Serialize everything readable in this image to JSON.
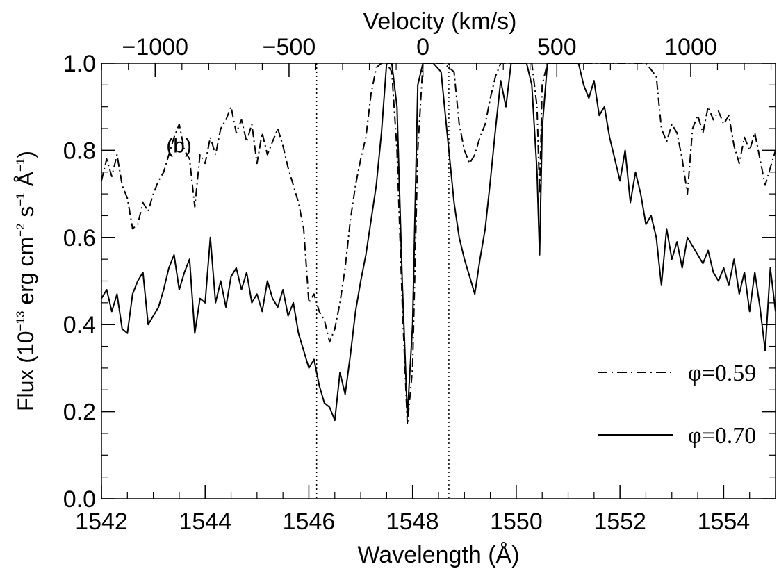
{
  "chart_data": {
    "type": "line",
    "panel_label": "(b)",
    "xlabel": "Wavelength (Å)",
    "ylabel_parts": [
      "Flux (10",
      "−13",
      " erg cm",
      "−2",
      " s",
      "−1",
      " Å",
      "−1",
      ")"
    ],
    "top_xlabel": "Velocity (km/s)",
    "xlim": [
      1542.0,
      1555.0
    ],
    "ylim": [
      0.0,
      1.0
    ],
    "xticks": [
      1542,
      1544,
      1546,
      1548,
      1550,
      1552,
      1554
    ],
    "xtick_labels": [
      "1542",
      "1544",
      "1546",
      "1548",
      "1550",
      "1552",
      "1554"
    ],
    "yticks": [
      0.0,
      0.2,
      0.4,
      0.6,
      0.8,
      1.0
    ],
    "ytick_labels": [
      "0.0",
      "0.2",
      "0.4",
      "0.6",
      "0.8",
      "1.0"
    ],
    "top_axis": {
      "rest_wavelength": 1548.2,
      "ticks": [
        -1000,
        -500,
        0,
        500,
        1000
      ],
      "tick_labels": [
        "−1000",
        "−500",
        "0",
        "500",
        "1000"
      ]
    },
    "reference_lines": [
      1546.15,
      1548.7
    ],
    "grid": false,
    "legend": {
      "placement": "bottom-right"
    },
    "series": [
      {
        "name": "φ=0.59",
        "style": "dash-dot",
        "points": [
          [
            1542.0,
            0.73
          ],
          [
            1542.1,
            0.78
          ],
          [
            1542.2,
            0.74
          ],
          [
            1542.3,
            0.79
          ],
          [
            1542.4,
            0.72
          ],
          [
            1542.5,
            0.69
          ],
          [
            1542.6,
            0.62
          ],
          [
            1542.7,
            0.63
          ],
          [
            1542.8,
            0.68
          ],
          [
            1542.9,
            0.66
          ],
          [
            1543.0,
            0.7
          ],
          [
            1543.1,
            0.73
          ],
          [
            1543.2,
            0.75
          ],
          [
            1543.3,
            0.79
          ],
          [
            1543.4,
            0.83
          ],
          [
            1543.5,
            0.86
          ],
          [
            1543.6,
            0.8
          ],
          [
            1543.7,
            0.78
          ],
          [
            1543.8,
            0.67
          ],
          [
            1543.9,
            0.79
          ],
          [
            1544.0,
            0.77
          ],
          [
            1544.1,
            0.83
          ],
          [
            1544.2,
            0.79
          ],
          [
            1544.3,
            0.85
          ],
          [
            1544.4,
            0.87
          ],
          [
            1544.5,
            0.9
          ],
          [
            1544.6,
            0.84
          ],
          [
            1544.7,
            0.87
          ],
          [
            1544.8,
            0.82
          ],
          [
            1544.9,
            0.86
          ],
          [
            1545.0,
            0.77
          ],
          [
            1545.1,
            0.84
          ],
          [
            1545.2,
            0.79
          ],
          [
            1545.3,
            0.82
          ],
          [
            1545.4,
            0.85
          ],
          [
            1545.5,
            0.81
          ],
          [
            1545.6,
            0.76
          ],
          [
            1545.7,
            0.72
          ],
          [
            1545.8,
            0.68
          ],
          [
            1545.9,
            0.62
          ],
          [
            1546.0,
            0.45
          ],
          [
            1546.1,
            0.47
          ],
          [
            1546.2,
            0.43
          ],
          [
            1546.3,
            0.41
          ],
          [
            1546.4,
            0.36
          ],
          [
            1546.5,
            0.39
          ],
          [
            1546.6,
            0.45
          ],
          [
            1546.7,
            0.53
          ],
          [
            1546.8,
            0.64
          ],
          [
            1546.9,
            0.72
          ],
          [
            1547.0,
            0.78
          ],
          [
            1547.1,
            0.83
          ],
          [
            1547.2,
            0.93
          ],
          [
            1547.3,
            0.99
          ],
          [
            1547.4,
            1.0
          ],
          [
            1547.5,
            1.0
          ],
          [
            1547.6,
            0.98
          ],
          [
            1547.7,
            0.8
          ],
          [
            1547.8,
            0.45
          ],
          [
            1547.9,
            0.17
          ],
          [
            1548.0,
            0.3
          ],
          [
            1548.1,
            0.8
          ],
          [
            1548.2,
            1.0
          ],
          [
            1548.4,
            1.0
          ],
          [
            1548.6,
            1.0
          ],
          [
            1548.8,
            0.98
          ],
          [
            1548.9,
            0.86
          ],
          [
            1549.0,
            0.8
          ],
          [
            1549.1,
            0.77
          ],
          [
            1549.2,
            0.79
          ],
          [
            1549.3,
            0.83
          ],
          [
            1549.4,
            0.86
          ],
          [
            1549.5,
            0.92
          ],
          [
            1549.6,
            0.97
          ],
          [
            1549.7,
            1.0
          ],
          [
            1550.0,
            1.0
          ],
          [
            1550.3,
            1.0
          ],
          [
            1550.4,
            0.9
          ],
          [
            1550.45,
            0.7
          ],
          [
            1550.5,
            0.95
          ],
          [
            1550.6,
            1.0
          ],
          [
            1551.0,
            1.0
          ],
          [
            1552.0,
            1.0
          ],
          [
            1552.5,
            1.0
          ],
          [
            1552.7,
            0.97
          ],
          [
            1552.8,
            0.85
          ],
          [
            1552.9,
            0.82
          ],
          [
            1553.0,
            0.86
          ],
          [
            1553.1,
            0.84
          ],
          [
            1553.2,
            0.78
          ],
          [
            1553.3,
            0.7
          ],
          [
            1553.4,
            0.85
          ],
          [
            1553.5,
            0.88
          ],
          [
            1553.6,
            0.84
          ],
          [
            1553.7,
            0.9
          ],
          [
            1553.8,
            0.87
          ],
          [
            1553.9,
            0.89
          ],
          [
            1554.0,
            0.86
          ],
          [
            1554.1,
            0.88
          ],
          [
            1554.2,
            0.81
          ],
          [
            1554.3,
            0.77
          ],
          [
            1554.4,
            0.83
          ],
          [
            1554.5,
            0.8
          ],
          [
            1554.6,
            0.84
          ],
          [
            1554.7,
            0.78
          ],
          [
            1554.8,
            0.72
          ],
          [
            1554.9,
            0.76
          ],
          [
            1555.0,
            0.8
          ]
        ]
      },
      {
        "name": "φ=0.70",
        "style": "solid",
        "points": [
          [
            1542.0,
            0.46
          ],
          [
            1542.1,
            0.48
          ],
          [
            1542.2,
            0.43
          ],
          [
            1542.3,
            0.47
          ],
          [
            1542.4,
            0.39
          ],
          [
            1542.5,
            0.38
          ],
          [
            1542.6,
            0.47
          ],
          [
            1542.7,
            0.5
          ],
          [
            1542.8,
            0.52
          ],
          [
            1542.9,
            0.4
          ],
          [
            1543.0,
            0.42
          ],
          [
            1543.1,
            0.44
          ],
          [
            1543.2,
            0.48
          ],
          [
            1543.3,
            0.53
          ],
          [
            1543.4,
            0.56
          ],
          [
            1543.5,
            0.48
          ],
          [
            1543.6,
            0.52
          ],
          [
            1543.7,
            0.55
          ],
          [
            1543.8,
            0.38
          ],
          [
            1543.9,
            0.46
          ],
          [
            1544.0,
            0.45
          ],
          [
            1544.1,
            0.6
          ],
          [
            1544.2,
            0.45
          ],
          [
            1544.3,
            0.5
          ],
          [
            1544.4,
            0.44
          ],
          [
            1544.5,
            0.51
          ],
          [
            1544.6,
            0.53
          ],
          [
            1544.7,
            0.48
          ],
          [
            1544.8,
            0.52
          ],
          [
            1544.9,
            0.45
          ],
          [
            1545.0,
            0.47
          ],
          [
            1545.1,
            0.43
          ],
          [
            1545.2,
            0.5
          ],
          [
            1545.3,
            0.46
          ],
          [
            1545.4,
            0.44
          ],
          [
            1545.5,
            0.48
          ],
          [
            1545.6,
            0.42
          ],
          [
            1545.7,
            0.45
          ],
          [
            1545.8,
            0.38
          ],
          [
            1545.9,
            0.34
          ],
          [
            1546.0,
            0.3
          ],
          [
            1546.1,
            0.32
          ],
          [
            1546.2,
            0.26
          ],
          [
            1546.3,
            0.22
          ],
          [
            1546.4,
            0.21
          ],
          [
            1546.5,
            0.18
          ],
          [
            1546.6,
            0.29
          ],
          [
            1546.7,
            0.24
          ],
          [
            1546.8,
            0.33
          ],
          [
            1546.9,
            0.43
          ],
          [
            1547.0,
            0.5
          ],
          [
            1547.1,
            0.56
          ],
          [
            1547.2,
            0.64
          ],
          [
            1547.3,
            0.72
          ],
          [
            1547.4,
            0.84
          ],
          [
            1547.5,
            1.0
          ],
          [
            1547.6,
            1.0
          ],
          [
            1547.7,
            0.9
          ],
          [
            1547.8,
            0.5
          ],
          [
            1547.9,
            0.19
          ],
          [
            1548.0,
            0.4
          ],
          [
            1548.1,
            0.95
          ],
          [
            1548.2,
            1.0
          ],
          [
            1548.4,
            1.0
          ],
          [
            1548.55,
            0.98
          ],
          [
            1548.7,
            0.8
          ],
          [
            1548.8,
            0.68
          ],
          [
            1548.9,
            0.6
          ],
          [
            1549.0,
            0.55
          ],
          [
            1549.1,
            0.51
          ],
          [
            1549.2,
            0.47
          ],
          [
            1549.3,
            0.55
          ],
          [
            1549.4,
            0.62
          ],
          [
            1549.5,
            0.73
          ],
          [
            1549.6,
            0.85
          ],
          [
            1549.7,
            0.96
          ],
          [
            1549.8,
            0.9
          ],
          [
            1549.9,
            1.0
          ],
          [
            1550.2,
            1.0
          ],
          [
            1550.3,
            0.95
          ],
          [
            1550.4,
            0.75
          ],
          [
            1550.45,
            0.56
          ],
          [
            1550.5,
            0.85
          ],
          [
            1550.6,
            1.0
          ],
          [
            1551.2,
            1.0
          ],
          [
            1551.3,
            0.95
          ],
          [
            1551.4,
            0.92
          ],
          [
            1551.5,
            0.96
          ],
          [
            1551.6,
            0.88
          ],
          [
            1551.7,
            0.9
          ],
          [
            1551.8,
            0.83
          ],
          [
            1551.9,
            0.78
          ],
          [
            1552.0,
            0.73
          ],
          [
            1552.1,
            0.8
          ],
          [
            1552.2,
            0.68
          ],
          [
            1552.3,
            0.75
          ],
          [
            1552.4,
            0.7
          ],
          [
            1552.5,
            0.63
          ],
          [
            1552.6,
            0.65
          ],
          [
            1552.7,
            0.6
          ],
          [
            1552.8,
            0.49
          ],
          [
            1552.9,
            0.62
          ],
          [
            1553.0,
            0.55
          ],
          [
            1553.1,
            0.59
          ],
          [
            1553.2,
            0.53
          ],
          [
            1553.3,
            0.6
          ],
          [
            1553.4,
            0.58
          ],
          [
            1553.5,
            0.56
          ],
          [
            1553.6,
            0.54
          ],
          [
            1553.7,
            0.57
          ],
          [
            1553.8,
            0.52
          ],
          [
            1553.9,
            0.5
          ],
          [
            1554.0,
            0.53
          ],
          [
            1554.1,
            0.49
          ],
          [
            1554.2,
            0.55
          ],
          [
            1554.3,
            0.47
          ],
          [
            1554.4,
            0.52
          ],
          [
            1554.5,
            0.43
          ],
          [
            1554.6,
            0.52
          ],
          [
            1554.7,
            0.44
          ],
          [
            1554.8,
            0.34
          ],
          [
            1554.9,
            0.53
          ],
          [
            1555.0,
            0.43
          ]
        ]
      }
    ]
  }
}
